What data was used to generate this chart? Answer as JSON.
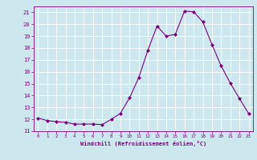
{
  "x": [
    0,
    1,
    2,
    3,
    4,
    5,
    6,
    7,
    8,
    9,
    10,
    11,
    12,
    13,
    14,
    15,
    16,
    17,
    18,
    19,
    20,
    21,
    22,
    23
  ],
  "y": [
    12.1,
    11.9,
    11.8,
    11.75,
    11.6,
    11.6,
    11.6,
    11.55,
    12.0,
    12.5,
    13.8,
    15.5,
    17.8,
    19.85,
    19.0,
    19.15,
    21.1,
    21.05,
    20.2,
    18.3,
    16.5,
    15.05,
    13.75,
    12.5
  ],
  "line_color": "#800080",
  "marker": "D",
  "marker_size": 2,
  "bg_color": "#cce8ee",
  "grid_color": "#b0d4dc",
  "xlabel": "Windchill (Refroidissement éolien,°C)",
  "xlim": [
    -0.5,
    23.5
  ],
  "ylim": [
    11,
    21.5
  ],
  "yticks": [
    11,
    12,
    13,
    14,
    15,
    16,
    17,
    18,
    19,
    20,
    21
  ],
  "xticks": [
    0,
    1,
    2,
    3,
    4,
    5,
    6,
    7,
    8,
    9,
    10,
    11,
    12,
    13,
    14,
    15,
    16,
    17,
    18,
    19,
    20,
    21,
    22,
    23
  ],
  "label_color": "#800080",
  "tick_color": "#800080",
  "spine_color": "#800080",
  "grid_major_color": "#ffffff",
  "grid_minor_color": "#ddeef2"
}
